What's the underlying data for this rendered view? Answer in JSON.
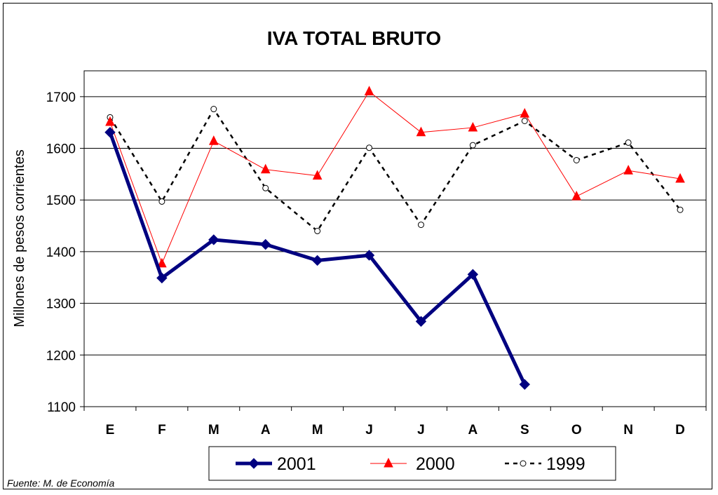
{
  "chart_data": {
    "type": "line",
    "title": "IVA TOTAL BRUTO",
    "xlabel": "",
    "ylabel": "Millones de pesos corrientes",
    "ylim": [
      1100,
      1750
    ],
    "yticks": [
      1100,
      1200,
      1300,
      1400,
      1500,
      1600,
      1700
    ],
    "categories": [
      "E",
      "F",
      "M",
      "A",
      "M",
      "J",
      "J",
      "A",
      "S",
      "O",
      "N",
      "D"
    ],
    "grid": "horizontal",
    "legend_position": "bottom",
    "series": [
      {
        "name": "2001",
        "color": "#000080",
        "marker": "diamond",
        "line_style": "solid-thick",
        "values": [
          1631,
          1349,
          1423,
          1414,
          1383,
          1393,
          1265,
          1356,
          1143,
          null,
          null,
          null
        ]
      },
      {
        "name": "2000",
        "color": "#ff0000",
        "marker": "triangle",
        "line_style": "solid-thin",
        "values": [
          1651,
          1377,
          1614,
          1559,
          1547,
          1710,
          1631,
          1640,
          1667,
          1507,
          1557,
          1541
        ]
      },
      {
        "name": "1999",
        "color": "#000000",
        "marker": "circle",
        "line_style": "dashed",
        "values": [
          1660,
          1497,
          1676,
          1523,
          1440,
          1601,
          1452,
          1606,
          1653,
          1577,
          1611,
          1481
        ]
      }
    ],
    "source": "Fuente: M. de Economía"
  }
}
